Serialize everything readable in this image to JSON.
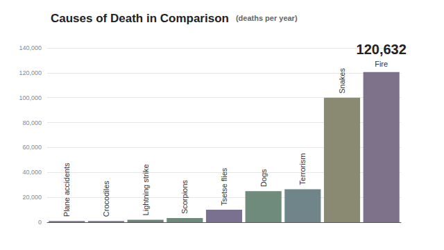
{
  "chart_data": {
    "type": "bar",
    "title": "Causes of Death in Comparison",
    "subtitle": "(deaths per year)",
    "categories": [
      "Plane accidents",
      "Crocodiles",
      "Lightning strike",
      "Scorpions",
      "Tsetse flies",
      "Dogs",
      "Terrorism",
      "Snakes",
      "Fire"
    ],
    "values": [
      1000,
      1000,
      2000,
      3300,
      10000,
      25000,
      26500,
      100000,
      120632
    ],
    "value_labels": [
      null,
      null,
      null,
      null,
      null,
      null,
      null,
      null,
      "120,632"
    ],
    "data_labels": true,
    "colors": [
      "#7d748b",
      "#7d748b",
      "#6c8279",
      "#6d897c",
      "#7a7190",
      "#6f8b7b",
      "#6f8589",
      "#8a8a72",
      "#7d7289"
    ],
    "ylim": [
      0,
      140000
    ],
    "yticks": [
      0,
      {
        "value": 20000,
        "label": "20,000"
      },
      {
        "value": 40000,
        "label": "40,000"
      },
      {
        "value": 60000,
        "label": "60,000"
      },
      {
        "value": 80000,
        "label": "80,000"
      },
      {
        "value": 100000,
        "label": "100,000"
      },
      {
        "value": 120000,
        "label": "120,000"
      },
      {
        "value": 140000,
        "label": "140,000"
      }
    ],
    "grid": true,
    "tick_labels": "y"
  }
}
